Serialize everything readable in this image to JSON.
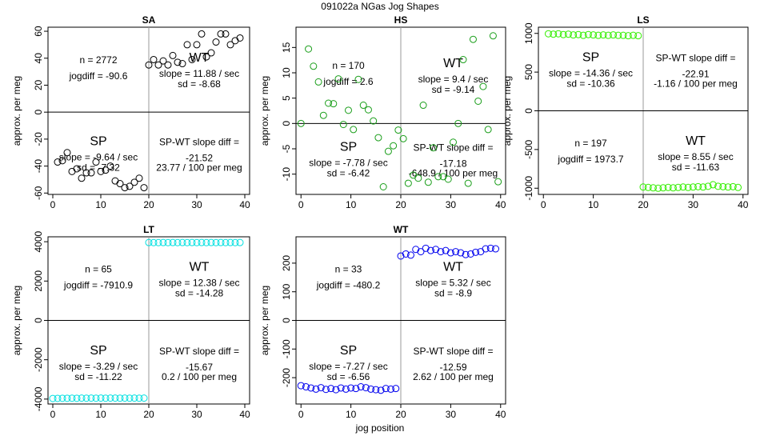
{
  "figure": {
    "title": "091022a    NGas Jog Shapes",
    "xlabel": "jog position"
  },
  "chart_data": [
    {
      "type": "scatter",
      "id": "SA",
      "title": "SA",
      "xlabel": "",
      "ylabel": "approx. per meg",
      "color": "#000000",
      "xlim": [
        -1,
        41
      ],
      "ylim": [
        -61,
        63
      ],
      "xticks": [
        0,
        10,
        20,
        30,
        40
      ],
      "yticks": [
        -60,
        -40,
        -20,
        0,
        20,
        40,
        60
      ],
      "x": [
        1,
        2,
        3,
        4,
        5,
        6,
        7,
        8,
        9,
        10,
        11,
        12,
        13,
        14,
        15,
        16,
        17,
        18,
        19,
        20,
        21,
        22,
        23,
        24,
        25,
        26,
        27,
        28,
        29,
        30,
        31,
        32,
        33,
        34,
        35,
        36,
        37,
        38,
        39
      ],
      "y": [
        -37,
        -36,
        -30,
        -44,
        -42,
        -49,
        -45,
        -45,
        -37,
        -44,
        -43,
        -40,
        -51,
        -53,
        -56,
        -55,
        -52,
        -49,
        -56,
        35,
        39,
        35,
        38,
        35,
        42,
        37,
        36,
        50,
        39,
        50,
        58,
        41,
        44,
        52,
        58,
        58,
        50,
        53,
        55
      ],
      "stats": {
        "n": "n = 2772",
        "jogdiff": "jogdiff = -90.6",
        "wt_label": "WT",
        "wt_slope": "slope = 11.88 / sec",
        "wt_sd": "sd = -8.68",
        "sp_label": "SP",
        "sp_slope": "slope = -9.64 / sec",
        "sp_sd": "sd = -7.32",
        "diff_label": "SP-WT slope diff =",
        "diff_val": "-21.52",
        "diff_per": "23.77 / 100 per meg"
      }
    },
    {
      "type": "scatter",
      "id": "HS",
      "title": "HS",
      "xlabel": "",
      "ylabel": "approx. per meg",
      "color": "#1a9e1a",
      "xlim": [
        -1,
        41
      ],
      "ylim": [
        -14,
        19
      ],
      "xticks": [
        0,
        10,
        20,
        30,
        40
      ],
      "yticks": [
        -10,
        -5,
        0,
        5,
        10,
        15
      ],
      "x": [
        0,
        1.5,
        2.5,
        3.5,
        4.5,
        5.5,
        6.5,
        7.5,
        8.5,
        9.5,
        10.5,
        11.5,
        12.5,
        13.5,
        14.5,
        15.5,
        16.5,
        17.5,
        18.5,
        19.5,
        20.5,
        21.5,
        22.5,
        23.5,
        24.5,
        25.5,
        26.5,
        27.5,
        28.5,
        29.5,
        30.5,
        31.5,
        32.5,
        33.5,
        34.5,
        35.5,
        36.5,
        37.5,
        38.5,
        39.5
      ],
      "y": [
        0,
        14.7,
        11.3,
        8.2,
        1.6,
        4,
        3.9,
        8.8,
        -0.2,
        2.6,
        -1.2,
        8.7,
        3.6,
        2.7,
        0.5,
        -2.8,
        -12.5,
        -5.5,
        -4.4,
        -1.3,
        -3,
        -11.8,
        -10.2,
        -10.8,
        3.6,
        -11.6,
        -4.8,
        -10.5,
        -10.5,
        -11,
        -3.7,
        0,
        12.6,
        -11.8,
        16.6,
        4.4,
        7.3,
        -1.2,
        17.3,
        -11.5
      ],
      "stats": {
        "n": "n = 170",
        "jogdiff": "jogdiff = 2.6",
        "wt_label": "WT",
        "wt_slope": "slope = 9.4 / sec",
        "wt_sd": "sd = -9.14",
        "sp_label": "SP",
        "sp_slope": "slope = -7.78 / sec",
        "sp_sd": "sd = -6.42",
        "diff_label": "SP-WT slope diff =",
        "diff_val": "-17.18",
        "diff_per": "-648.9 / 100 per meg"
      }
    },
    {
      "type": "scatter",
      "id": "LS",
      "title": "LS",
      "xlabel": "",
      "ylabel": "approx. per meg",
      "color": "#33ee00",
      "xlim": [
        -1,
        41
      ],
      "ylim": [
        -1080,
        1080
      ],
      "xticks": [
        0,
        10,
        20,
        30,
        40
      ],
      "yticks": [
        -1000,
        -500,
        0,
        500,
        1000
      ],
      "x": [
        1,
        2,
        3,
        4,
        5,
        6,
        7,
        8,
        9,
        10,
        11,
        12,
        13,
        14,
        15,
        16,
        17,
        18,
        19,
        20,
        21,
        22,
        23,
        24,
        25,
        26,
        27,
        28,
        29,
        30,
        31,
        32,
        33,
        34,
        35,
        36,
        37,
        38,
        39
      ],
      "y": [
        995,
        990,
        995,
        985,
        990,
        980,
        985,
        975,
        985,
        980,
        975,
        980,
        975,
        980,
        975,
        975,
        970,
        975,
        970,
        -985,
        -990,
        -995,
        -1000,
        -995,
        -990,
        -995,
        -990,
        -985,
        -990,
        -985,
        -980,
        -985,
        -975,
        -955,
        -975,
        -980,
        -985,
        -980,
        -990
      ],
      "stats": {
        "n": "n = 197",
        "jogdiff": "jogdiff = 1973.7",
        "wt_label": "WT",
        "wt_slope": "slope = 8.55 / sec",
        "wt_sd": "sd = -11.63",
        "sp_label": "SP",
        "sp_slope": "slope = -14.36 / sec",
        "sp_sd": "sd = -10.36",
        "diff_label": "SP-WT slope diff =",
        "diff_val": "-22.91",
        "diff_per": "-1.16 / 100 per meg"
      }
    },
    {
      "type": "scatter",
      "id": "LT",
      "title": "LT",
      "xlabel": "",
      "ylabel": "approx. per meg",
      "color": "#00e0e0",
      "xlim": [
        -1,
        41
      ],
      "ylim": [
        -4250,
        4250
      ],
      "xticks": [
        0,
        10,
        20,
        30,
        40
      ],
      "yticks": [
        -4000,
        -2000,
        0,
        2000,
        4000
      ],
      "x": [
        0,
        1,
        2,
        3,
        4,
        5,
        6,
        7,
        8,
        9,
        10,
        11,
        12,
        13,
        14,
        15,
        16,
        17,
        18,
        19,
        20,
        21,
        22,
        23,
        24,
        25,
        26,
        27,
        28,
        29,
        30,
        31,
        32,
        33,
        34,
        35,
        36,
        37,
        38,
        39
      ],
      "y": [
        -3970,
        -3965,
        -3960,
        -3960,
        -3955,
        -3960,
        -3950,
        -3955,
        -3950,
        -3955,
        -3950,
        -3955,
        -3950,
        -3950,
        -3955,
        -3950,
        -3955,
        -3950,
        -3955,
        -3950,
        3960,
        3955,
        3955,
        3960,
        3955,
        3960,
        3955,
        3960,
        3955,
        3960,
        3955,
        3960,
        3955,
        3960,
        3955,
        3960,
        3955,
        3960,
        3955,
        3960
      ],
      "stats": {
        "n": "n = 65",
        "jogdiff": "jogdiff = -7910.9",
        "wt_label": "WT",
        "wt_slope": "slope = 12.38 / sec",
        "wt_sd": "sd = -14.28",
        "sp_label": "SP",
        "sp_slope": "slope = -3.29 / sec",
        "sp_sd": "sd = -11.22",
        "diff_label": "SP-WT slope diff =",
        "diff_val": "-15.67",
        "diff_per": "0.2 / 100 per meg"
      }
    },
    {
      "type": "scatter",
      "id": "WT",
      "title": "WT",
      "xlabel": "jog position",
      "ylabel": "approx. per meg",
      "color": "#0000ee",
      "xlim": [
        -1,
        41
      ],
      "ylim": [
        -292,
        292
      ],
      "xticks": [
        0,
        10,
        20,
        30,
        40
      ],
      "yticks": [
        -200,
        -100,
        0,
        100,
        200
      ],
      "x": [
        0,
        1,
        2,
        3,
        4,
        5,
        6,
        7,
        8,
        9,
        10,
        11,
        12,
        13,
        14,
        15,
        16,
        17,
        18,
        19,
        20,
        21,
        22,
        23,
        24,
        25,
        26,
        27,
        28,
        29,
        30,
        31,
        32,
        33,
        34,
        35,
        36,
        37,
        38,
        39
      ],
      "y": [
        -228,
        -232,
        -236,
        -240,
        -235,
        -241,
        -238,
        -242,
        -236,
        -240,
        -236,
        -238,
        -232,
        -235,
        -240,
        -242,
        -244,
        -238,
        -240,
        -238,
        225,
        232,
        228,
        248,
        240,
        252,
        244,
        248,
        240,
        244,
        236,
        240,
        236,
        230,
        232,
        238,
        240,
        250,
        252,
        250
      ],
      "stats": {
        "n": "n = 33",
        "jogdiff": "jogdiff = -480.2",
        "wt_label": "WT",
        "wt_slope": "slope = 5.32 / sec",
        "wt_sd": "sd = -8.9",
        "sp_label": "SP",
        "sp_slope": "slope = -7.27 / sec",
        "sp_sd": "sd = -6.56",
        "diff_label": "SP-WT slope diff =",
        "diff_val": "-12.59",
        "diff_per": "2.62 / 100 per meg"
      }
    }
  ]
}
